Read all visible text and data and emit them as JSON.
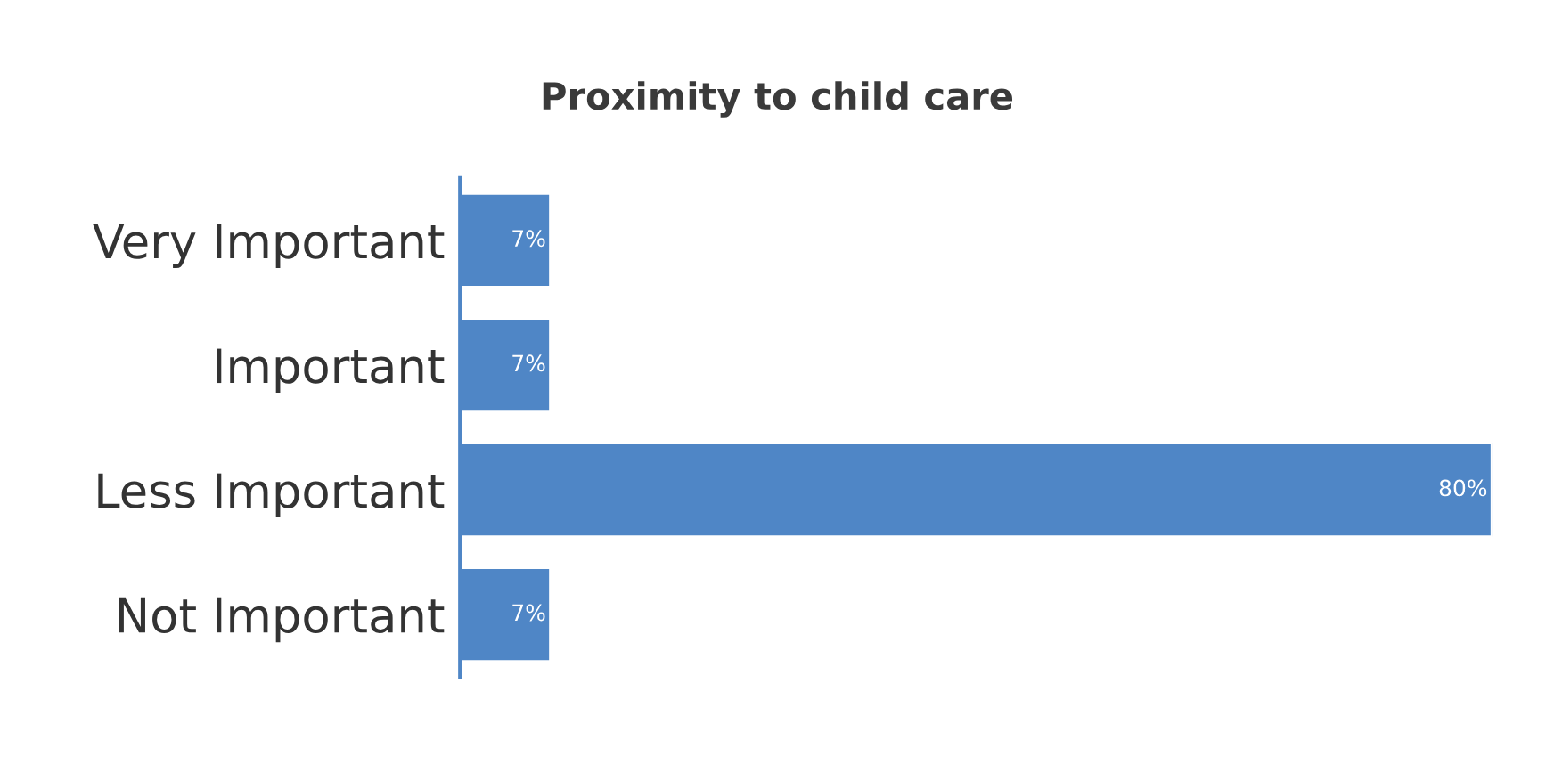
{
  "chart_data": {
    "type": "bar",
    "orientation": "horizontal",
    "title": "Proximity to child care",
    "categories": [
      "Very Important",
      "Important",
      "Less Important",
      "Not Important"
    ],
    "values": [
      7,
      7,
      80,
      7
    ],
    "value_labels": [
      "7%",
      "7%",
      "80%",
      "7%"
    ],
    "color": "#4f86c6",
    "grid": false,
    "legend": false
  }
}
